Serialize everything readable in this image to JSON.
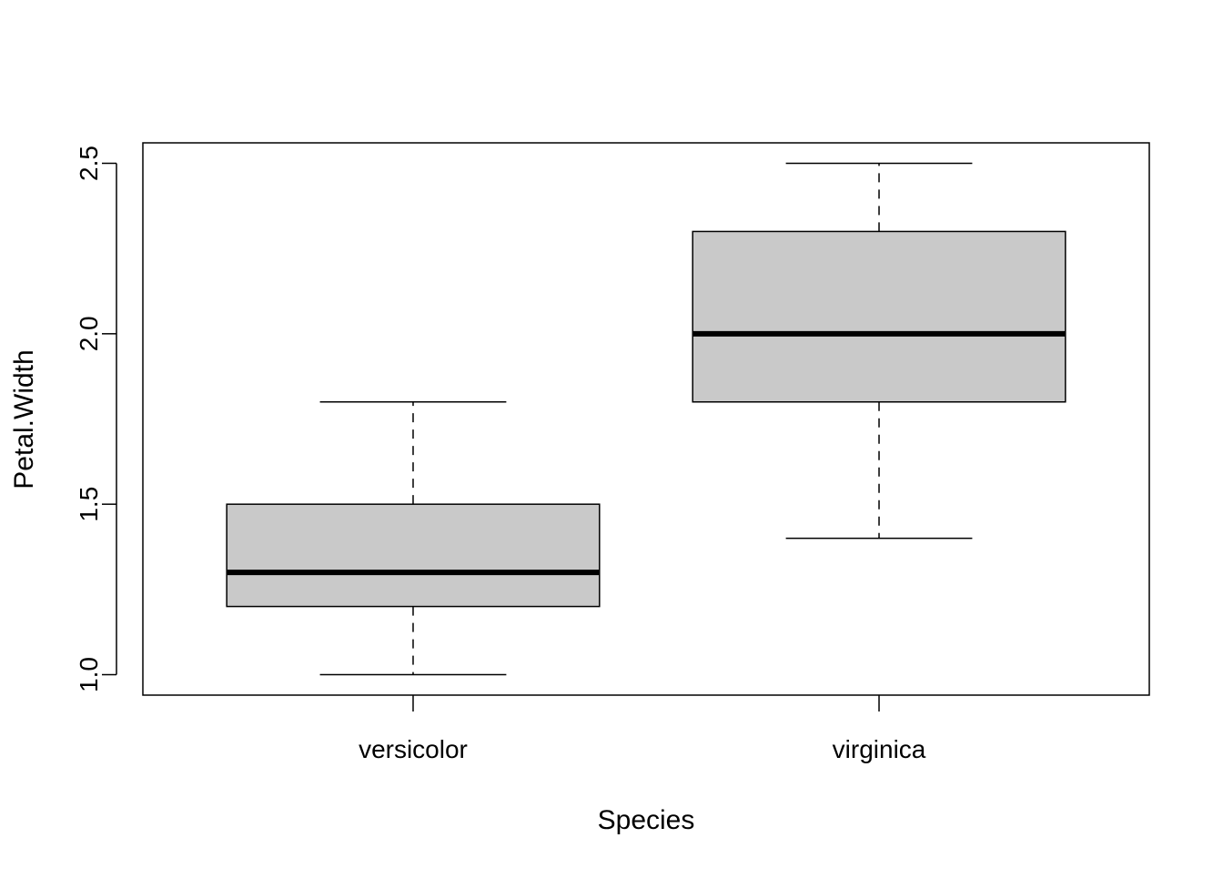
{
  "chart_data": {
    "type": "boxplot",
    "title": "",
    "xlabel": "Species",
    "ylabel": "Petal.Width",
    "categories": [
      "versicolor",
      "virginica"
    ],
    "boxes": [
      {
        "category": "versicolor",
        "min": 1.0,
        "q1": 1.2,
        "median": 1.3,
        "q3": 1.5,
        "max": 1.8
      },
      {
        "category": "virginica",
        "min": 1.4,
        "q1": 1.8,
        "median": 2.0,
        "q3": 2.3,
        "max": 2.5
      }
    ],
    "ylim": [
      0.94,
      2.56
    ],
    "yticks": [
      "1.0",
      "1.5",
      "2.0",
      "2.5"
    ],
    "grid": false,
    "legend": "none",
    "colors": {
      "box_fill": "#c9c9c9",
      "stroke": "#000000",
      "background": "#ffffff"
    }
  }
}
